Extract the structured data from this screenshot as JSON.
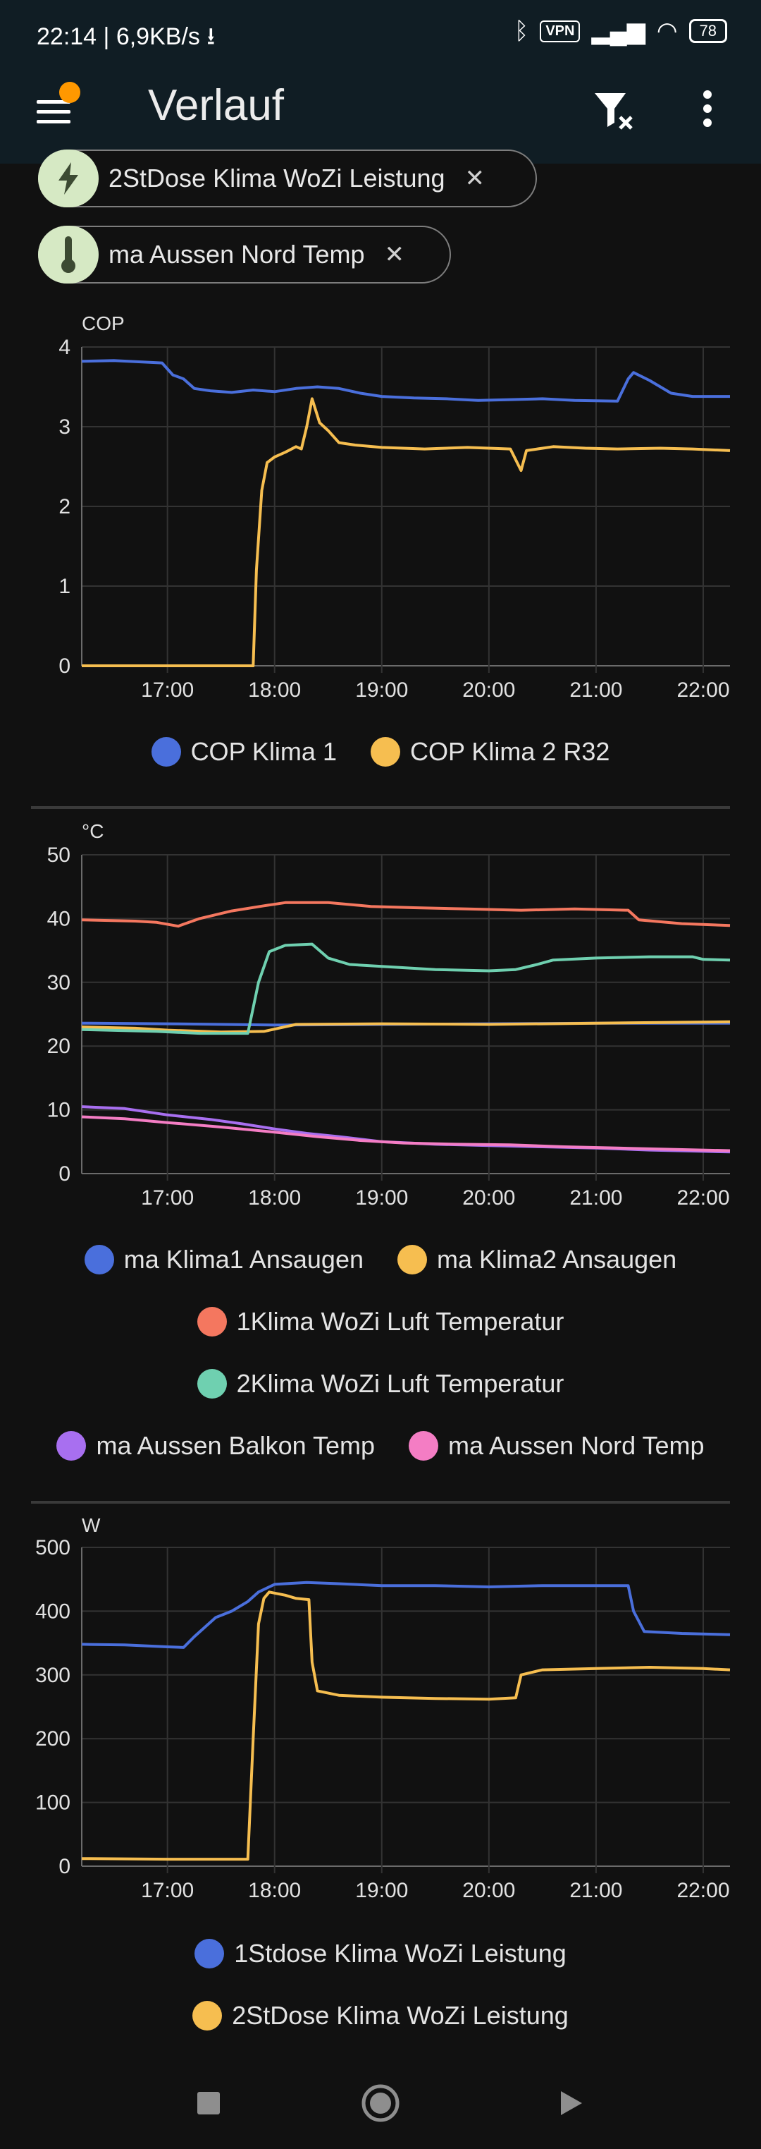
{
  "status_bar": {
    "time": "22:14",
    "speed": "6,9KB/s",
    "vpn": "VPN",
    "battery": "78"
  },
  "app_bar": {
    "title": "Verlauf",
    "menu_badge_color": "#ff9800"
  },
  "chips": [
    {
      "label": "2StDose Klima WoZi Leistung",
      "icon": "lightning-icon"
    },
    {
      "label": "ma Aussen Nord Temp",
      "icon": "thermometer-icon"
    }
  ],
  "chart_data": [
    {
      "type": "line",
      "unit": "COP",
      "ylim": [
        0,
        4
      ],
      "yticks": [
        "0",
        "1",
        "2",
        "3",
        "4"
      ],
      "xlim": [
        16.2,
        22.25
      ],
      "xticks": [
        {
          "v": 17,
          "label": "17:00"
        },
        {
          "v": 18,
          "label": "18:00"
        },
        {
          "v": 19,
          "label": "19:00"
        },
        {
          "v": 20,
          "label": "20:00"
        },
        {
          "v": 21,
          "label": "21:00"
        },
        {
          "v": 22,
          "label": "22:00"
        }
      ],
      "grid": true,
      "series": [
        {
          "name": "COP Klima 1",
          "color": "#4a6fdc",
          "points": [
            [
              16.2,
              3.82
            ],
            [
              16.5,
              3.83
            ],
            [
              16.8,
              3.81
            ],
            [
              16.95,
              3.8
            ],
            [
              17.05,
              3.65
            ],
            [
              17.15,
              3.6
            ],
            [
              17.25,
              3.48
            ],
            [
              17.4,
              3.45
            ],
            [
              17.6,
              3.43
            ],
            [
              17.8,
              3.46
            ],
            [
              18.0,
              3.44
            ],
            [
              18.2,
              3.48
            ],
            [
              18.4,
              3.5
            ],
            [
              18.6,
              3.48
            ],
            [
              18.8,
              3.42
            ],
            [
              19.0,
              3.38
            ],
            [
              19.3,
              3.36
            ],
            [
              19.6,
              3.35
            ],
            [
              19.9,
              3.33
            ],
            [
              20.2,
              3.34
            ],
            [
              20.5,
              3.35
            ],
            [
              20.8,
              3.33
            ],
            [
              21.2,
              3.32
            ],
            [
              21.3,
              3.6
            ],
            [
              21.35,
              3.68
            ],
            [
              21.5,
              3.58
            ],
            [
              21.7,
              3.42
            ],
            [
              21.9,
              3.38
            ],
            [
              22.25,
              3.38
            ]
          ]
        },
        {
          "name": "COP Klima 2 R32",
          "color": "#f6be50",
          "points": [
            [
              16.2,
              0.0
            ],
            [
              17.8,
              0.0
            ],
            [
              17.83,
              1.2
            ],
            [
              17.88,
              2.2
            ],
            [
              17.93,
              2.55
            ],
            [
              18.0,
              2.62
            ],
            [
              18.1,
              2.68
            ],
            [
              18.2,
              2.75
            ],
            [
              18.25,
              2.72
            ],
            [
              18.3,
              3.0
            ],
            [
              18.35,
              3.35
            ],
            [
              18.42,
              3.05
            ],
            [
              18.5,
              2.95
            ],
            [
              18.6,
              2.8
            ],
            [
              18.75,
              2.77
            ],
            [
              19.0,
              2.74
            ],
            [
              19.4,
              2.72
            ],
            [
              19.8,
              2.74
            ],
            [
              20.2,
              2.72
            ],
            [
              20.3,
              2.45
            ],
            [
              20.35,
              2.7
            ],
            [
              20.6,
              2.75
            ],
            [
              20.9,
              2.73
            ],
            [
              21.2,
              2.72
            ],
            [
              21.6,
              2.73
            ],
            [
              21.9,
              2.72
            ],
            [
              22.25,
              2.7
            ]
          ]
        }
      ]
    },
    {
      "type": "line",
      "unit": "°C",
      "ylim": [
        0,
        50
      ],
      "yticks": [
        "0",
        "10",
        "20",
        "30",
        "40",
        "50"
      ],
      "xlim": [
        16.2,
        22.25
      ],
      "xticks": [
        {
          "v": 17,
          "label": "17:00"
        },
        {
          "v": 18,
          "label": "18:00"
        },
        {
          "v": 19,
          "label": "19:00"
        },
        {
          "v": 20,
          "label": "20:00"
        },
        {
          "v": 21,
          "label": "21:00"
        },
        {
          "v": 22,
          "label": "22:00"
        }
      ],
      "grid": true,
      "series": [
        {
          "name": "ma Klima1 Ansaugen",
          "color": "#4a6fdc",
          "points": [
            [
              16.2,
              23.6
            ],
            [
              17.0,
              23.5
            ],
            [
              18.0,
              23.3
            ],
            [
              19.0,
              23.4
            ],
            [
              20.0,
              23.5
            ],
            [
              21.0,
              23.6
            ],
            [
              22.25,
              23.6
            ]
          ]
        },
        {
          "name": "ma Klima2 Ansaugen",
          "color": "#f6be50",
          "points": [
            [
              16.2,
              23.0
            ],
            [
              16.7,
              22.8
            ],
            [
              17.0,
              22.5
            ],
            [
              17.5,
              22.2
            ],
            [
              17.9,
              22.3
            ],
            [
              18.2,
              23.4
            ],
            [
              19.0,
              23.5
            ],
            [
              20.0,
              23.4
            ],
            [
              21.0,
              23.6
            ],
            [
              22.25,
              23.8
            ]
          ]
        },
        {
          "name": "1Klima WoZi Luft Temperatur",
          "color": "#f4775f",
          "points": [
            [
              16.2,
              39.8
            ],
            [
              16.7,
              39.6
            ],
            [
              16.9,
              39.4
            ],
            [
              17.1,
              38.8
            ],
            [
              17.3,
              40.0
            ],
            [
              17.6,
              41.2
            ],
            [
              17.9,
              42.0
            ],
            [
              18.1,
              42.5
            ],
            [
              18.5,
              42.5
            ],
            [
              18.9,
              41.9
            ],
            [
              19.3,
              41.7
            ],
            [
              19.8,
              41.5
            ],
            [
              20.3,
              41.3
            ],
            [
              20.8,
              41.5
            ],
            [
              21.3,
              41.3
            ],
            [
              21.4,
              39.8
            ],
            [
              21.8,
              39.2
            ],
            [
              22.25,
              38.9
            ]
          ]
        },
        {
          "name": "2Klima WoZi Luft Temperatur",
          "color": "#6fd0b0",
          "points": [
            [
              16.2,
              22.6
            ],
            [
              16.9,
              22.3
            ],
            [
              17.3,
              22.0
            ],
            [
              17.75,
              22.0
            ],
            [
              17.85,
              30.0
            ],
            [
              17.95,
              34.8
            ],
            [
              18.1,
              35.8
            ],
            [
              18.35,
              36.0
            ],
            [
              18.5,
              33.8
            ],
            [
              18.7,
              32.8
            ],
            [
              19.0,
              32.5
            ],
            [
              19.5,
              32.0
            ],
            [
              20.0,
              31.8
            ],
            [
              20.25,
              32.0
            ],
            [
              20.45,
              32.8
            ],
            [
              20.6,
              33.5
            ],
            [
              21.0,
              33.8
            ],
            [
              21.5,
              34.0
            ],
            [
              21.9,
              34.0
            ],
            [
              22.0,
              33.6
            ],
            [
              22.25,
              33.5
            ]
          ]
        },
        {
          "name": "ma Aussen Balkon Temp",
          "color": "#a86ff0",
          "points": [
            [
              16.2,
              10.5
            ],
            [
              16.6,
              10.2
            ],
            [
              17.0,
              9.2
            ],
            [
              17.4,
              8.5
            ],
            [
              17.7,
              7.8
            ],
            [
              18.0,
              7.0
            ],
            [
              18.3,
              6.3
            ],
            [
              18.6,
              5.8
            ],
            [
              19.0,
              5.0
            ],
            [
              19.5,
              4.6
            ],
            [
              20.0,
              4.4
            ],
            [
              20.5,
              4.2
            ],
            [
              21.0,
              4.0
            ],
            [
              21.5,
              3.7
            ],
            [
              22.0,
              3.5
            ],
            [
              22.25,
              3.4
            ]
          ]
        },
        {
          "name": "ma Aussen Nord Temp",
          "color": "#f47dc4",
          "points": [
            [
              16.2,
              8.9
            ],
            [
              16.6,
              8.6
            ],
            [
              17.0,
              8.0
            ],
            [
              17.5,
              7.3
            ],
            [
              18.0,
              6.5
            ],
            [
              18.4,
              5.8
            ],
            [
              18.8,
              5.2
            ],
            [
              19.2,
              4.8
            ],
            [
              19.7,
              4.6
            ],
            [
              20.2,
              4.5
            ],
            [
              20.7,
              4.2
            ],
            [
              21.2,
              4.0
            ],
            [
              21.7,
              3.8
            ],
            [
              22.25,
              3.6
            ]
          ]
        }
      ]
    },
    {
      "type": "line",
      "unit": "W",
      "ylim": [
        0,
        500
      ],
      "yticks": [
        "0",
        "100",
        "200",
        "300",
        "400",
        "500"
      ],
      "xlim": [
        16.2,
        22.25
      ],
      "xticks": [
        {
          "v": 17,
          "label": "17:00"
        },
        {
          "v": 18,
          "label": "18:00"
        },
        {
          "v": 19,
          "label": "19:00"
        },
        {
          "v": 20,
          "label": "20:00"
        },
        {
          "v": 21,
          "label": "21:00"
        },
        {
          "v": 22,
          "label": "22:00"
        }
      ],
      "grid": true,
      "series": [
        {
          "name": "1Stdose Klima WoZi Leistung",
          "color": "#4a6fdc",
          "points": [
            [
              16.2,
              348
            ],
            [
              16.6,
              347
            ],
            [
              17.0,
              344
            ],
            [
              17.15,
              343
            ],
            [
              17.25,
              360
            ],
            [
              17.35,
              375
            ],
            [
              17.45,
              390
            ],
            [
              17.6,
              400
            ],
            [
              17.75,
              415
            ],
            [
              17.85,
              430
            ],
            [
              18.0,
              442
            ],
            [
              18.3,
              445
            ],
            [
              18.6,
              443
            ],
            [
              19.0,
              440
            ],
            [
              19.5,
              440
            ],
            [
              20.0,
              438
            ],
            [
              20.5,
              440
            ],
            [
              21.0,
              440
            ],
            [
              21.3,
              440
            ],
            [
              21.35,
              400
            ],
            [
              21.45,
              368
            ],
            [
              21.8,
              365
            ],
            [
              22.25,
              363
            ]
          ]
        },
        {
          "name": "2StDose Klima WoZi Leistung",
          "color": "#f6be50",
          "points": [
            [
              16.2,
              12
            ],
            [
              17.0,
              11
            ],
            [
              17.75,
              11
            ],
            [
              17.8,
              200
            ],
            [
              17.85,
              380
            ],
            [
              17.9,
              420
            ],
            [
              17.95,
              430
            ],
            [
              18.1,
              425
            ],
            [
              18.2,
              420
            ],
            [
              18.32,
              418
            ],
            [
              18.35,
              320
            ],
            [
              18.4,
              275
            ],
            [
              18.6,
              268
            ],
            [
              19.0,
              265
            ],
            [
              19.5,
              263
            ],
            [
              20.0,
              262
            ],
            [
              20.25,
              264
            ],
            [
              20.3,
              300
            ],
            [
              20.5,
              308
            ],
            [
              21.0,
              310
            ],
            [
              21.5,
              312
            ],
            [
              22.0,
              310
            ],
            [
              22.25,
              308
            ]
          ]
        }
      ]
    }
  ],
  "legend_rows": [
    [
      [
        "COP Klima 1",
        "COP Klima 2 R32"
      ]
    ],
    [
      [
        "ma Klima1 Ansaugen",
        "ma Klima2 Ansaugen"
      ],
      [
        "1Klima WoZi Luft Temperatur"
      ],
      [
        "2Klima WoZi Luft Temperatur"
      ],
      [
        "ma Aussen Balkon Temp",
        "ma Aussen Nord Temp"
      ]
    ],
    [
      [
        "1Stdose Klima WoZi Leistung"
      ],
      [
        "2StDose Klima WoZi Leistung"
      ]
    ]
  ]
}
